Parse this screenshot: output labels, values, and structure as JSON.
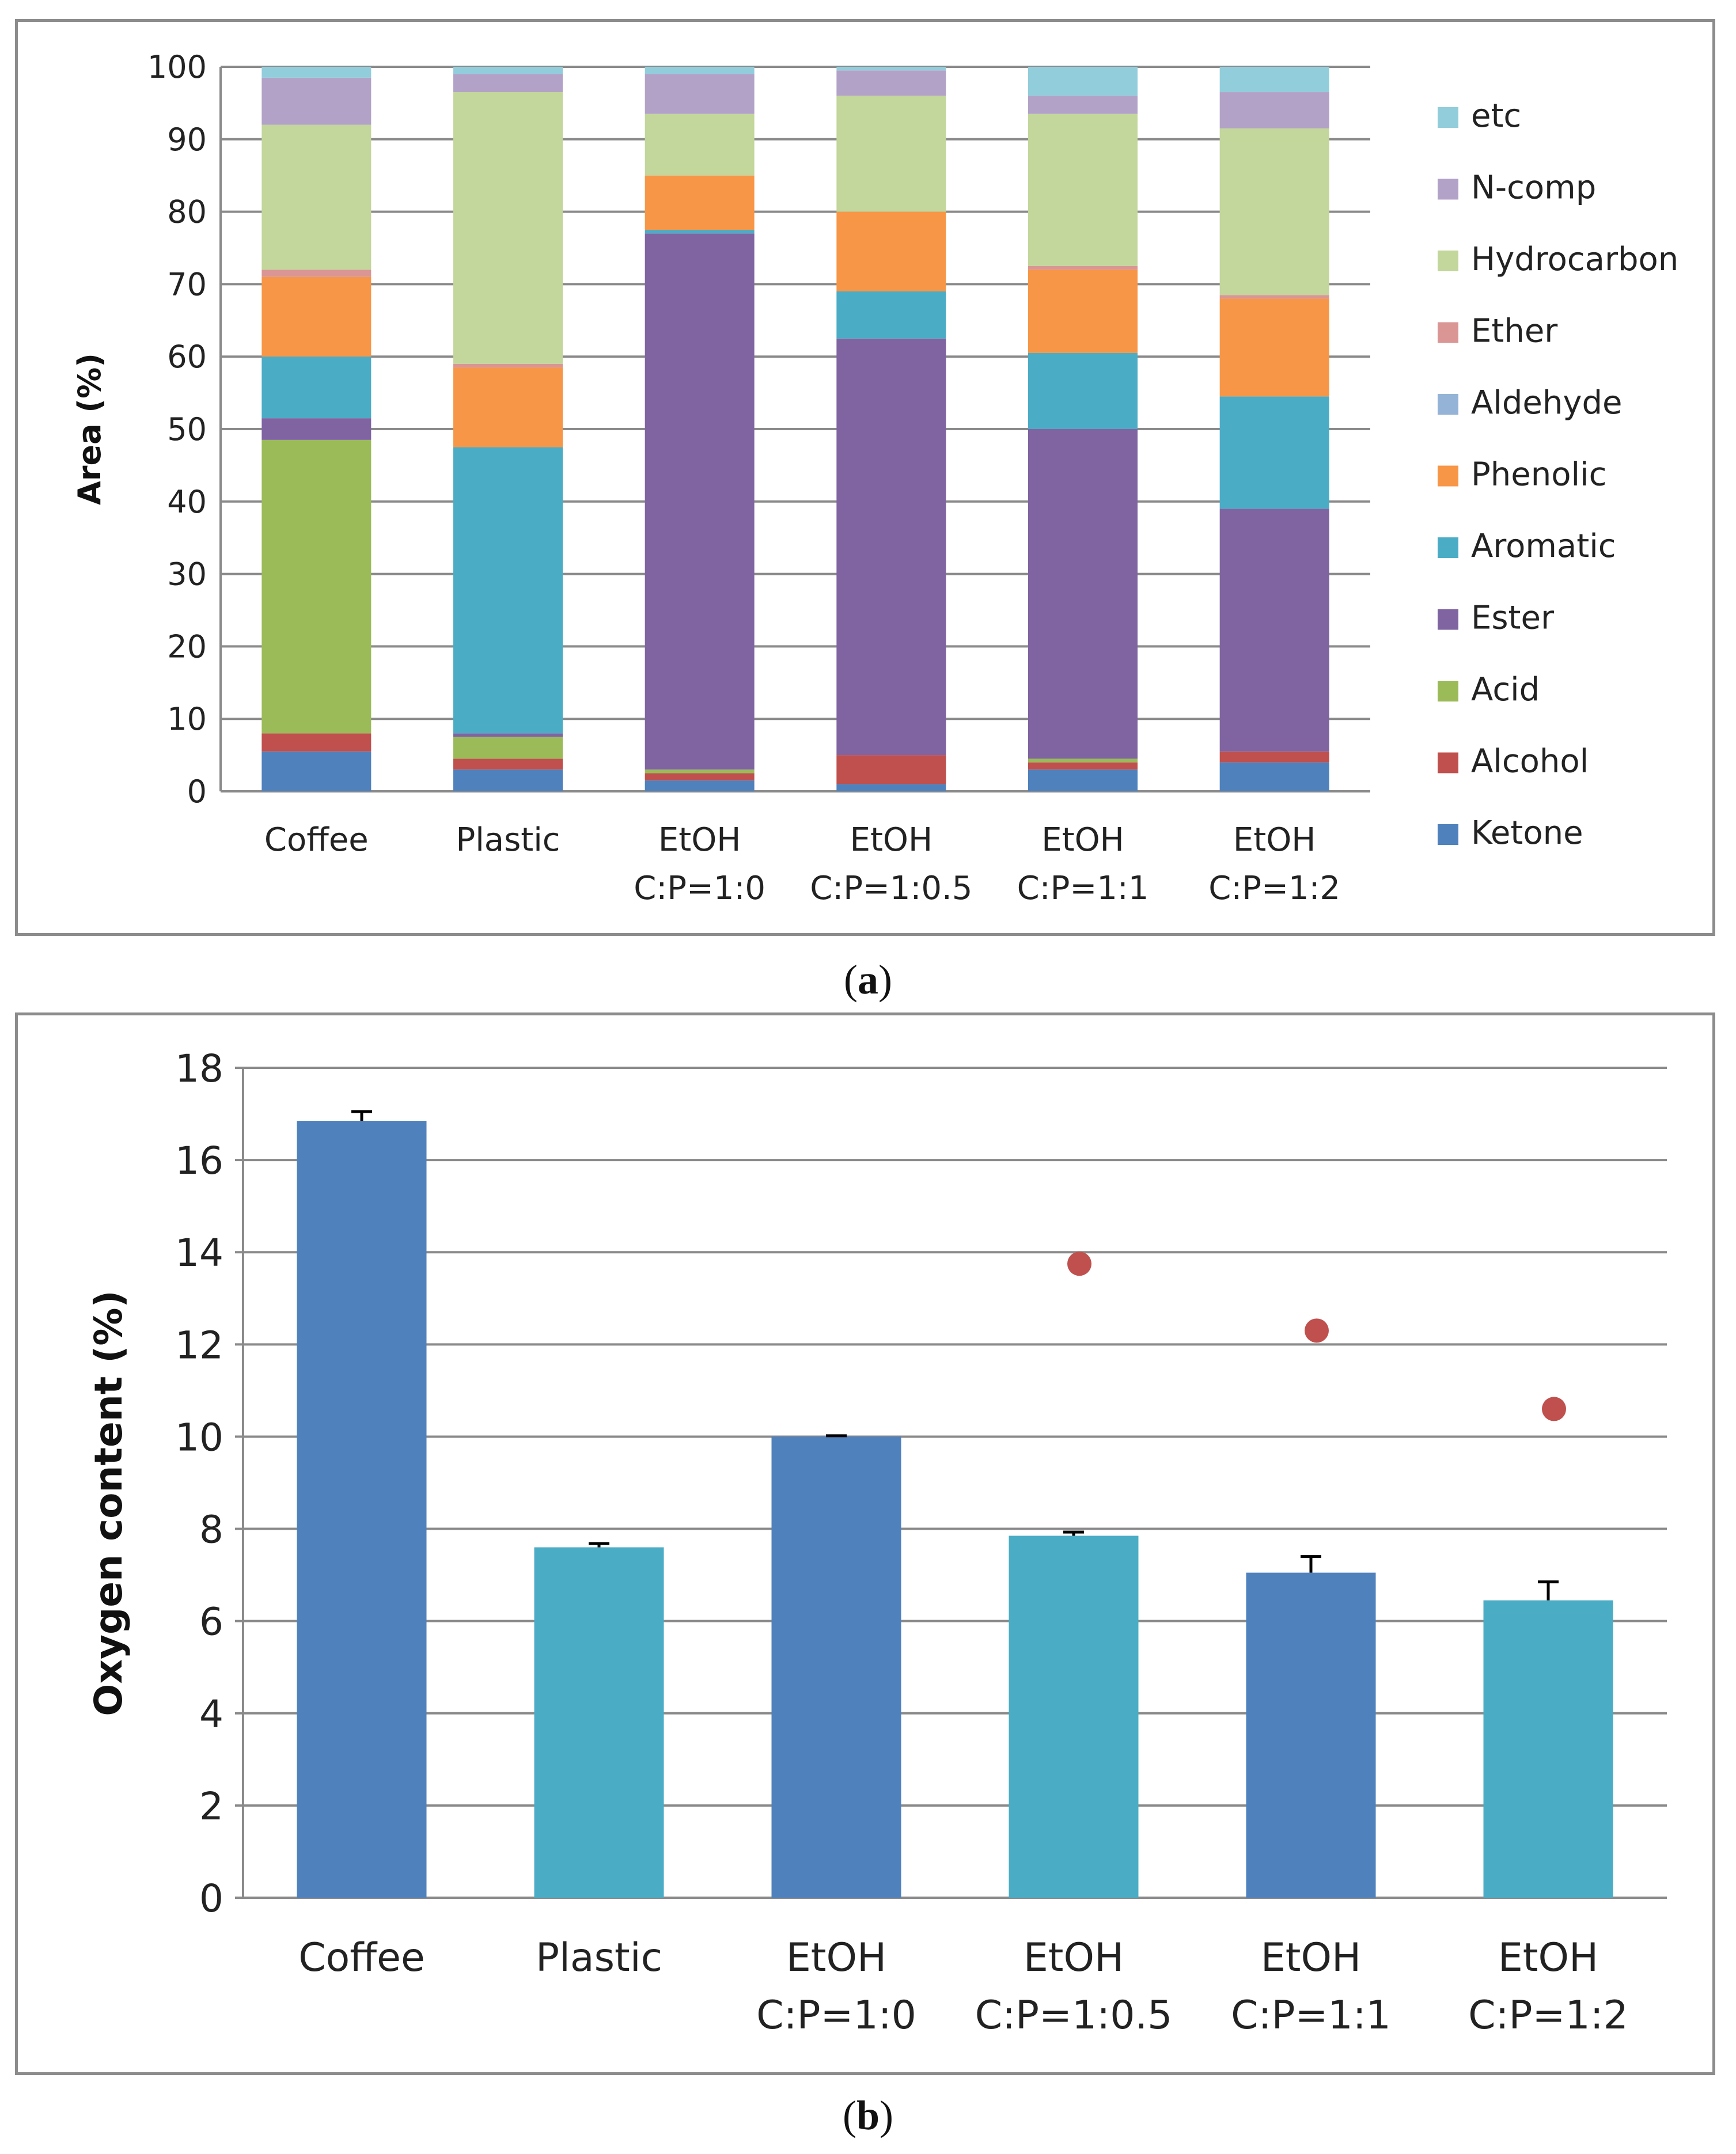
{
  "captions": {
    "a_letter": "a",
    "b_letter": "b"
  },
  "chart_data": [
    {
      "type": "stacked-bar",
      "title": "",
      "xlabel": "",
      "ylabel": "Area (%)",
      "ylim": [
        0,
        100
      ],
      "yticks": [
        "0",
        "10",
        "20",
        "30",
        "40",
        "50",
        "60",
        "70",
        "80",
        "90",
        "100"
      ],
      "grid": true,
      "legend_position": "right",
      "categories": [
        [
          "Coffee"
        ],
        [
          "Plastic"
        ],
        [
          "EtOH",
          "C:P=1:0"
        ],
        [
          "EtOH",
          "C:P=1:0.5"
        ],
        [
          "EtOH",
          "C:P=1:1"
        ],
        [
          "EtOH",
          "C:P=1:2"
        ]
      ],
      "series": [
        {
          "name": "Ketone",
          "color": "#4f81bd",
          "values": [
            5.5,
            3.0,
            1.5,
            1.0,
            3.0,
            4.0
          ]
        },
        {
          "name": "Alcohol",
          "color": "#c0504d",
          "values": [
            2.5,
            1.5,
            1.0,
            4.0,
            1.0,
            1.5
          ]
        },
        {
          "name": "Acid",
          "color": "#9bbb59",
          "values": [
            40.5,
            3.0,
            0.5,
            0.0,
            0.5,
            0.0
          ]
        },
        {
          "name": "Ester",
          "color": "#8064a2",
          "values": [
            3.0,
            0.5,
            74.0,
            57.5,
            45.5,
            33.5
          ]
        },
        {
          "name": "Aromatic",
          "color": "#4bacc6",
          "values": [
            8.5,
            39.5,
            0.5,
            6.5,
            10.5,
            15.5
          ]
        },
        {
          "name": "Phenolic",
          "color": "#f79646",
          "values": [
            11.0,
            11.0,
            7.5,
            11.0,
            11.5,
            13.5
          ]
        },
        {
          "name": "Aldehyde",
          "color": "#95b3d7",
          "values": [
            0.0,
            0.0,
            0.0,
            0.0,
            0.0,
            0.0
          ]
        },
        {
          "name": "Ether",
          "color": "#d99694",
          "values": [
            1.0,
            0.5,
            0.0,
            0.0,
            0.5,
            0.5
          ]
        },
        {
          "name": "Hydrocarbon",
          "color": "#c3d69b",
          "values": [
            20.0,
            37.5,
            8.5,
            16.0,
            21.0,
            23.0
          ]
        },
        {
          "name": "N-comp",
          "color": "#b3a2c7",
          "values": [
            6.5,
            2.5,
            5.5,
            3.5,
            2.5,
            5.0
          ]
        },
        {
          "name": "etc",
          "color": "#92cddc",
          "values": [
            1.5,
            1.0,
            1.0,
            0.5,
            4.0,
            3.5
          ]
        }
      ]
    },
    {
      "type": "bar",
      "title": "",
      "xlabel": "",
      "ylabel": "Oxygen content (%)",
      "ylim": [
        0,
        18
      ],
      "yticks": [
        "0",
        "2",
        "4",
        "6",
        "8",
        "10",
        "12",
        "14",
        "16",
        "18"
      ],
      "grid": true,
      "categories": [
        [
          "Coffee"
        ],
        [
          "Plastic"
        ],
        [
          "EtOH",
          "C:P=1:0"
        ],
        [
          "EtOH",
          "C:P=1:0.5"
        ],
        [
          "EtOH",
          "C:P=1:1"
        ],
        [
          "EtOH",
          "C:P=1:2"
        ]
      ],
      "values": [
        16.85,
        7.6,
        10.0,
        7.85,
        7.05,
        6.45
      ],
      "errors": [
        0.2,
        0.08,
        0.02,
        0.08,
        0.35,
        0.4
      ],
      "bar_colors": [
        "#4f81bd",
        "#4bacc6",
        "#4f81bd",
        "#4bacc6",
        "#4f81bd",
        "#4bacc6"
      ],
      "points": [
        {
          "category_index": 3,
          "value": 13.75
        },
        {
          "category_index": 4,
          "value": 12.3
        },
        {
          "category_index": 5,
          "value": 10.6
        }
      ],
      "point_color": "#c0504d"
    }
  ]
}
